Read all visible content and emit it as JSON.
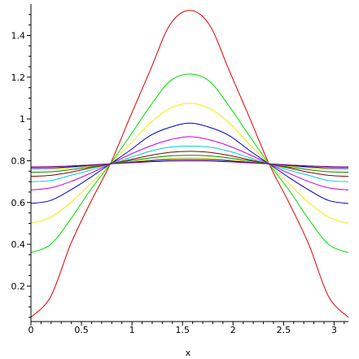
{
  "chart_data": {
    "type": "line",
    "title": "",
    "xlabel": "x",
    "ylabel": "",
    "xlim": [
      0,
      3.1416
    ],
    "ylim": [
      0.03,
      1.55
    ],
    "grid": false,
    "legend": "none",
    "x_ticks": [
      {
        "value": 0,
        "label": "0"
      },
      {
        "value": 0.5,
        "label": "0.5"
      },
      {
        "value": 1,
        "label": "1"
      },
      {
        "value": 1.5,
        "label": "1.5"
      },
      {
        "value": 2,
        "label": "2"
      },
      {
        "value": 2.5,
        "label": "2.5"
      },
      {
        "value": 3,
        "label": "3"
      }
    ],
    "y_ticks": [
      {
        "value": 0.2,
        "label": "0.2"
      },
      {
        "value": 0.4,
        "label": "0.4"
      },
      {
        "value": 0.6,
        "label": "0.6"
      },
      {
        "value": 0.8,
        "label": "0.8"
      },
      {
        "value": 1,
        "label": "1"
      },
      {
        "value": 1.2,
        "label": "1.2"
      },
      {
        "value": 1.4,
        "label": "1.4"
      }
    ],
    "x": [
      0,
      0.1963,
      0.3927,
      0.589,
      0.7854,
      0.9817,
      1.1781,
      1.3744,
      1.5708,
      1.7671,
      1.9635,
      2.1598,
      2.3562,
      2.5525,
      2.7489,
      2.9452,
      3.1416
    ],
    "series": [
      {
        "color": "#dd0000",
        "values": [
          0.05,
          0.15,
          0.4,
          0.6,
          0.785,
          1.01,
          1.23,
          1.45,
          1.52,
          1.45,
          1.23,
          1.01,
          0.785,
          0.6,
          0.4,
          0.15,
          0.05
        ]
      },
      {
        "color": "#00dd00",
        "values": [
          0.36,
          0.4,
          0.52,
          0.66,
          0.785,
          0.92,
          1.06,
          1.18,
          1.215,
          1.18,
          1.06,
          0.92,
          0.785,
          0.66,
          0.52,
          0.4,
          0.36
        ]
      },
      {
        "color": "#eeee00",
        "values": [
          0.5,
          0.53,
          0.6,
          0.69,
          0.785,
          0.88,
          0.98,
          1.05,
          1.075,
          1.05,
          0.98,
          0.88,
          0.785,
          0.69,
          0.6,
          0.53,
          0.5
        ]
      },
      {
        "color": "#0000cc",
        "values": [
          0.595,
          0.61,
          0.66,
          0.72,
          0.785,
          0.85,
          0.92,
          0.96,
          0.98,
          0.96,
          0.92,
          0.85,
          0.785,
          0.72,
          0.66,
          0.61,
          0.595
        ]
      },
      {
        "color": "#cc00cc",
        "values": [
          0.66,
          0.67,
          0.7,
          0.74,
          0.785,
          0.83,
          0.87,
          0.9,
          0.915,
          0.9,
          0.87,
          0.83,
          0.785,
          0.74,
          0.7,
          0.67,
          0.66
        ]
      },
      {
        "color": "#00cccc",
        "values": [
          0.7,
          0.705,
          0.73,
          0.755,
          0.785,
          0.815,
          0.845,
          0.865,
          0.87,
          0.865,
          0.845,
          0.815,
          0.785,
          0.755,
          0.73,
          0.705,
          0.7
        ]
      },
      {
        "color": "#880000",
        "values": [
          0.725,
          0.73,
          0.745,
          0.765,
          0.785,
          0.805,
          0.825,
          0.84,
          0.845,
          0.84,
          0.825,
          0.805,
          0.785,
          0.765,
          0.745,
          0.73,
          0.725
        ]
      },
      {
        "color": "#008800",
        "values": [
          0.745,
          0.747,
          0.757,
          0.77,
          0.785,
          0.8,
          0.813,
          0.823,
          0.826,
          0.823,
          0.813,
          0.8,
          0.785,
          0.77,
          0.757,
          0.747,
          0.745
        ]
      },
      {
        "color": "#bbbb00",
        "values": [
          0.757,
          0.759,
          0.766,
          0.775,
          0.785,
          0.795,
          0.804,
          0.811,
          0.813,
          0.811,
          0.804,
          0.795,
          0.785,
          0.775,
          0.766,
          0.759,
          0.757
        ]
      },
      {
        "color": "#000099",
        "values": [
          0.765,
          0.766,
          0.771,
          0.778,
          0.785,
          0.792,
          0.799,
          0.804,
          0.805,
          0.804,
          0.799,
          0.792,
          0.785,
          0.778,
          0.771,
          0.766,
          0.765
        ]
      },
      {
        "color": "#880088",
        "values": [
          0.771,
          0.772,
          0.775,
          0.78,
          0.785,
          0.79,
          0.795,
          0.798,
          0.799,
          0.798,
          0.795,
          0.79,
          0.785,
          0.78,
          0.775,
          0.772,
          0.771
        ]
      }
    ]
  }
}
